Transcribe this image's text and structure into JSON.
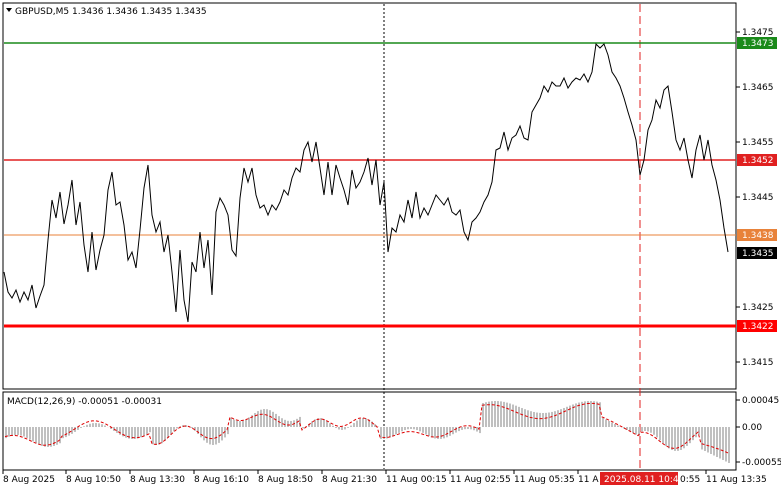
{
  "header": {
    "symbol_line": "GBPUSD,M5  1.3436 1.3436 1.3435 1.3435"
  },
  "price_axis": {
    "ticks": [
      "1.3475",
      "1.3465",
      "1.3455",
      "1.3445",
      "1.3425",
      "1.3415"
    ]
  },
  "levels": [
    {
      "label": "1.3473",
      "color": "#1a8a1a"
    },
    {
      "label": "1.3452",
      "color": "#e02020"
    },
    {
      "label": "1.3438",
      "color": "#e8823a"
    },
    {
      "label": "1.3422",
      "color": "#ff0000"
    }
  ],
  "current_price": {
    "label": "1.3435"
  },
  "macd": {
    "label": "MACD(12,26,9) -0.00051 -0.00031",
    "ticks": [
      "0.00045",
      "0.00",
      "-0.00055"
    ]
  },
  "time_axis": {
    "labels": [
      "8 Aug 2025",
      "8 Aug 10:50",
      "8 Aug 13:30",
      "8 Aug 16:10",
      "8 Aug 18:50",
      "8 Aug 21:30",
      "11 Aug 00:15",
      "11 Aug 02:55",
      "11 Aug 05:35",
      "11 A",
      "0:55",
      "11 Aug 13:35"
    ],
    "highlight": "2025.08.11 10:45"
  },
  "colors": {
    "price_line": "#000000",
    "histogram": "#c0c0c0",
    "signal": "#e00000",
    "highlight_bg": "#e02020"
  }
}
